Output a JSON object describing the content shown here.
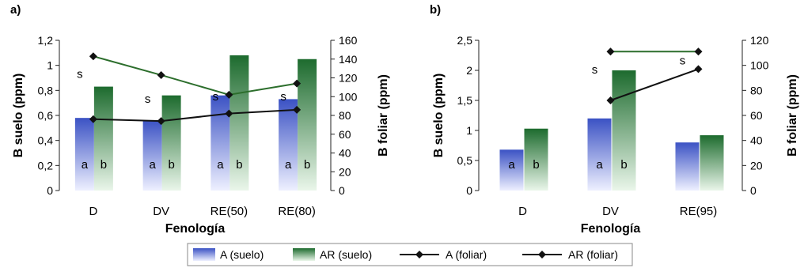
{
  "legend": [
    {
      "label": "A (suelo)",
      "kind": "bar",
      "color": "#3b52c4"
    },
    {
      "label": "AR (suelo)",
      "kind": "bar",
      "color": "#1d6b2e"
    },
    {
      "label": "A (foliar)",
      "kind": "line",
      "color": "#111111"
    },
    {
      "label": "AR (foliar)",
      "kind": "line",
      "color": "#111111"
    }
  ],
  "colors": {
    "a_bar_top": "#3b52c4",
    "a_bar_bottom": "#eef0ff",
    "ar_bar_top": "#1d6b2e",
    "ar_bar_bottom": "#eaf6ea",
    "a_line": "#111111",
    "ar_line": "#2c6e2c"
  },
  "chart_data": [
    {
      "type": "bar",
      "panel_label": "a)",
      "xlabel": "Fenología",
      "ylabel": "B suelo (ppm)",
      "y2label": "B foliar (ppm)",
      "categories": [
        "D",
        "DV",
        "RE(50)",
        "RE(80)"
      ],
      "ylim": [
        0,
        1.2
      ],
      "yticks": [
        "0",
        "0,2",
        "0,4",
        "0,6",
        "0,8",
        "1",
        "1,2"
      ],
      "y2lim": [
        0,
        160
      ],
      "y2ticks": [
        "0",
        "20",
        "40",
        "60",
        "80",
        "100",
        "120",
        "140",
        "160"
      ],
      "series": [
        {
          "name": "A (suelo)",
          "type": "bar",
          "axis": "left",
          "values": [
            0.58,
            0.56,
            0.76,
            0.73
          ]
        },
        {
          "name": "AR (suelo)",
          "type": "bar",
          "axis": "left",
          "values": [
            0.83,
            0.76,
            1.08,
            1.05
          ]
        },
        {
          "name": "A (foliar)",
          "type": "line",
          "axis": "right",
          "values": [
            76,
            74,
            82,
            86
          ]
        },
        {
          "name": "AR (foliar)",
          "type": "line",
          "axis": "right",
          "values": [
            143,
            123,
            102,
            114
          ]
        }
      ],
      "bar_labels": [
        [
          "a",
          "b"
        ],
        [
          "a",
          "b"
        ],
        [
          "a",
          "b"
        ],
        [
          "a",
          "b"
        ]
      ],
      "sig_labels": [
        {
          "category": "D",
          "text": "s",
          "value": 0.9
        },
        {
          "category": "DV",
          "text": "s",
          "value": 0.7
        },
        {
          "category": "RE(50)",
          "text": "s",
          "value": 0.72
        },
        {
          "category": "RE(80)",
          "text": "s",
          "value": 0.72
        }
      ]
    },
    {
      "type": "bar",
      "panel_label": "b)",
      "xlabel": "Fenología",
      "ylabel": "B suelo (ppm)",
      "y2label": "B foliar (ppm)",
      "categories": [
        "D",
        "DV",
        "RE(95)"
      ],
      "ylim": [
        0,
        2.5
      ],
      "yticks": [
        "0",
        "0,5",
        "1",
        "1,5",
        "2",
        "2,5"
      ],
      "y2lim": [
        0,
        120
      ],
      "y2ticks": [
        "0",
        "20",
        "40",
        "60",
        "80",
        "100",
        "120"
      ],
      "series": [
        {
          "name": "A (suelo)",
          "type": "bar",
          "axis": "left",
          "values": [
            0.68,
            1.2,
            0.8
          ]
        },
        {
          "name": "AR (suelo)",
          "type": "bar",
          "axis": "left",
          "values": [
            1.03,
            2.0,
            0.92
          ]
        },
        {
          "name": "A (foliar)",
          "type": "line",
          "axis": "right",
          "values": [
            null,
            72,
            97
          ]
        },
        {
          "name": "AR (foliar)",
          "type": "line",
          "axis": "right",
          "values": [
            null,
            111,
            111
          ]
        }
      ],
      "bar_labels": [
        [
          "a",
          "b"
        ],
        [
          "a",
          "b"
        ],
        [
          "",
          ""
        ]
      ],
      "sig_labels": [
        {
          "category": "DV",
          "text": "s",
          "value": 1.95
        },
        {
          "category": "RE(95)",
          "text": "s",
          "value": 2.1
        }
      ]
    }
  ]
}
